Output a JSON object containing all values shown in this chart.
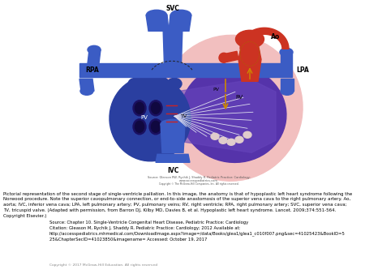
{
  "caption_text": "Pictorial representation of the second stage of single-ventricle palliation. In this image, the anatomy is that of hypoplastic left heart syndrome following the\nNorwood procedure. Note the superior cavopulmonary connection, or end-to-side anastomosis of the superior vena cava to the right pulmonary artery. Ao,\naorta; IVC, inferior vena cava; LPA, left pulmonary artery; PV, pulmonary veins; RV, right ventricle; RPA, right pulmonary artery; SVC, superior vena cava;\nTV, tricuspid valve. (Adapted with permission, from Barron DJ, Kilby MD, Davies B, et al. Hypoplastic left heart syndrome. Lancet. 2009;374:551-564.\nCopyright Elsevier.)",
  "source_line1": "Source: Chapter 10. Single-Ventricle Congenital Heart Disease, Pediatric Practice: Cardiology",
  "source_line2": "Citation: Gleason M, Rychik J, Shaddy R. Pediatric Practice: Cardiology; 2012 Available at:",
  "source_line3": "http://accesspediatrics.mhmedical.com/Downloadlmage.aspx?image=/data/Books/glea1/glea1_c010f007.png&sec=41025423&BookID=5\n25&ChapterSecID=41023850&imagename= Accessed: October 19, 2017",
  "copyright": "Copyright © 2017 McGraw-Hill Education. All rights reserved",
  "img_source1": "Source: Gleeson RW, Rychik J, Shaddy R. Pediatric Practice: Cardiology:",
  "img_source2": "www.accesspediatrics.com",
  "img_copyright": "Copyright © The McGraw-Hill Companies, Inc. All rights reserved.",
  "bg_color": "#ffffff",
  "logo_bg": "#cc0000",
  "label_svc": "SVC",
  "label_rpa": "RPA",
  "label_lpa": "LPA",
  "label_ao": "Ao",
  "label_rv": "RV",
  "label_pv_left": "PV",
  "label_pv_right": "PV",
  "label_tv": "TV",
  "label_ivc": "IVC",
  "blue_color": "#3B5CC4",
  "dark_blue": "#2A3FA0",
  "mid_blue": "#4060BB",
  "red_color": "#CC3322",
  "pink_color": "#E8AAAA",
  "purple_color": "#5533AA",
  "dark_purple": "#3B2288",
  "med_purple": "#6644BB",
  "gold_color": "#CC8800",
  "light_pink": "#F2BFBF",
  "lighter_pink": "#F8D8D8",
  "dashed_color": "#333333"
}
